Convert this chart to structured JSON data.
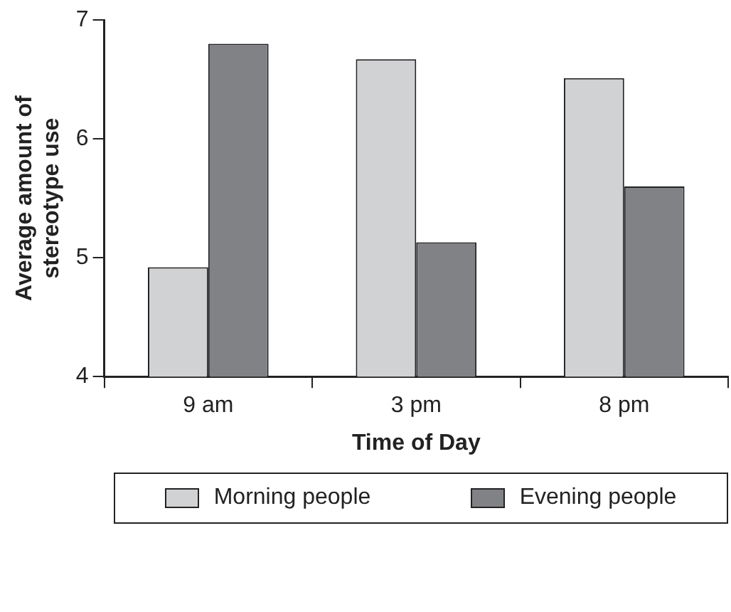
{
  "chart_data": {
    "type": "bar",
    "xlabel": "Time of Day",
    "ylabel": "Average amount of stereotype use",
    "categories": [
      "9 am",
      "3 pm",
      "8 pm"
    ],
    "series": [
      {
        "name": "Morning people",
        "color": "#d1d2d4",
        "values": [
          4.92,
          6.67,
          6.51
        ]
      },
      {
        "name": "Evening people",
        "color": "#818285",
        "values": [
          6.8,
          5.13,
          5.6
        ]
      }
    ],
    "ylim": [
      4,
      7
    ],
    "yticks": [
      4,
      5,
      6,
      7
    ],
    "grid": false,
    "legend": "bottom"
  }
}
